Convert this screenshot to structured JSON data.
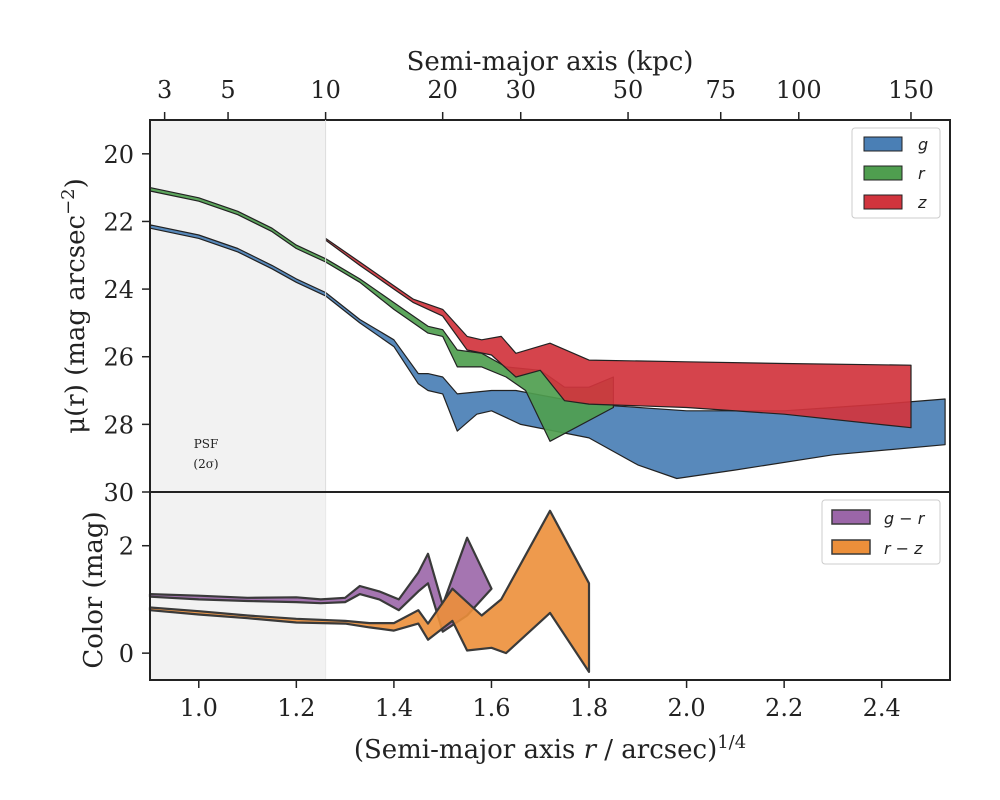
{
  "colors": {
    "g": "#4a7fb5",
    "r": "#4f9e4f",
    "z": "#d1343d",
    "gr": "#9b66a8",
    "rz": "#ec8f3a",
    "psf_shade": "#f2f2f2"
  },
  "chart_data": [
    {
      "type": "area",
      "panel": "surface-brightness",
      "xlabel_top": "Semi-major axis (kpc)",
      "ylabel": "μ(r) (mag arcsec⁻²)",
      "ylabel_parts": {
        "main": "μ(r) (mag arcsec",
        "sup": "−2",
        "close": ")"
      },
      "xlim": [
        0.9,
        2.54
      ],
      "ylim": [
        30,
        19
      ],
      "y_ticks": [
        20,
        22,
        24,
        26,
        28,
        30
      ],
      "top_axis": {
        "tick_labels": [
          "3",
          "5",
          "10",
          "20",
          "30",
          "50",
          "75",
          "100",
          "150"
        ],
        "tick_positions": [
          0.93,
          1.06,
          1.26,
          1.5,
          1.66,
          1.88,
          2.07,
          2.23,
          2.46
        ]
      },
      "psf_region": {
        "x_max": 1.26,
        "label_line1": "PSF",
        "label_line2": "(2σ)"
      },
      "legend": {
        "position": "top-right",
        "entries": [
          "g",
          "r",
          "z"
        ]
      },
      "series": [
        {
          "name": "g",
          "color_key": "g",
          "upper": [
            [
              0.9,
              22.1
            ],
            [
              1.0,
              22.4
            ],
            [
              1.08,
              22.8
            ],
            [
              1.15,
              23.3
            ],
            [
              1.2,
              23.7
            ],
            [
              1.26,
              24.1
            ],
            [
              1.33,
              24.9
            ],
            [
              1.4,
              25.5
            ],
            [
              1.45,
              26.5
            ],
            [
              1.47,
              26.5
            ],
            [
              1.5,
              26.6
            ],
            [
              1.53,
              27.1
            ],
            [
              1.6,
              27.0
            ],
            [
              1.65,
              27.0
            ],
            [
              1.8,
              27.4
            ],
            [
              2.0,
              27.6
            ],
            [
              2.2,
              27.6
            ],
            [
              2.3,
              27.5
            ],
            [
              2.4,
              27.4
            ],
            [
              2.53,
              27.25
            ]
          ],
          "lower": [
            [
              0.9,
              22.2
            ],
            [
              1.0,
              22.5
            ],
            [
              1.08,
              22.9
            ],
            [
              1.15,
              23.4
            ],
            [
              1.2,
              23.8
            ],
            [
              1.26,
              24.2
            ],
            [
              1.33,
              25.0
            ],
            [
              1.4,
              25.7
            ],
            [
              1.45,
              26.8
            ],
            [
              1.47,
              27.0
            ],
            [
              1.5,
              27.1
            ],
            [
              1.53,
              28.2
            ],
            [
              1.57,
              27.7
            ],
            [
              1.6,
              27.6
            ],
            [
              1.66,
              28.0
            ],
            [
              1.8,
              28.4
            ],
            [
              1.9,
              29.2
            ],
            [
              1.98,
              29.6
            ],
            [
              2.1,
              29.35
            ],
            [
              2.3,
              28.9
            ],
            [
              2.53,
              28.6
            ]
          ]
        },
        {
          "name": "r",
          "color_key": "r",
          "upper": [
            [
              0.9,
              21.0
            ],
            [
              1.0,
              21.3
            ],
            [
              1.08,
              21.7
            ],
            [
              1.15,
              22.2
            ],
            [
              1.2,
              22.7
            ],
            [
              1.26,
              23.1
            ],
            [
              1.33,
              23.7
            ],
            [
              1.4,
              24.4
            ],
            [
              1.43,
              24.7
            ],
            [
              1.47,
              25.1
            ],
            [
              1.5,
              25.2
            ],
            [
              1.53,
              25.8
            ],
            [
              1.58,
              25.9
            ],
            [
              1.63,
              26.3
            ],
            [
              1.7,
              26.4
            ],
            [
              1.75,
              26.9
            ],
            [
              1.8,
              26.9
            ],
            [
              1.85,
              26.6
            ]
          ],
          "lower": [
            [
              0.9,
              21.1
            ],
            [
              1.0,
              21.4
            ],
            [
              1.08,
              21.8
            ],
            [
              1.15,
              22.3
            ],
            [
              1.2,
              22.8
            ],
            [
              1.26,
              23.2
            ],
            [
              1.33,
              23.8
            ],
            [
              1.4,
              24.6
            ],
            [
              1.43,
              24.9
            ],
            [
              1.47,
              25.3
            ],
            [
              1.5,
              25.4
            ],
            [
              1.53,
              26.3
            ],
            [
              1.58,
              26.3
            ],
            [
              1.63,
              26.6
            ],
            [
              1.67,
              27.0
            ],
            [
              1.72,
              28.5
            ],
            [
              1.85,
              27.5
            ]
          ]
        },
        {
          "name": "z",
          "color_key": "z",
          "upper": [
            [
              1.26,
              22.5
            ],
            [
              1.33,
              23.2
            ],
            [
              1.4,
              23.9
            ],
            [
              1.44,
              24.3
            ],
            [
              1.5,
              24.6
            ],
            [
              1.55,
              25.4
            ],
            [
              1.58,
              25.5
            ],
            [
              1.62,
              25.4
            ],
            [
              1.65,
              25.9
            ],
            [
              1.72,
              25.6
            ],
            [
              1.8,
              26.1
            ],
            [
              2.0,
              26.15
            ],
            [
              2.2,
              26.2
            ],
            [
              2.46,
              26.25
            ]
          ],
          "lower": [
            [
              1.26,
              22.55
            ],
            [
              1.33,
              23.3
            ],
            [
              1.4,
              24.0
            ],
            [
              1.44,
              24.4
            ],
            [
              1.5,
              24.8
            ],
            [
              1.55,
              25.8
            ],
            [
              1.6,
              25.95
            ],
            [
              1.65,
              26.6
            ],
            [
              1.7,
              26.4
            ],
            [
              1.75,
              27.3
            ],
            [
              1.8,
              27.4
            ],
            [
              2.0,
              27.5
            ],
            [
              2.2,
              27.7
            ],
            [
              2.46,
              28.1
            ]
          ]
        }
      ]
    },
    {
      "type": "area",
      "panel": "color",
      "xlabel": "(Semi-major axis r / arcsec)^1/4",
      "xlabel_parts": {
        "main": "(Semi-major axis ",
        "italic": "r",
        "tail": " / arcsec)",
        "sup": "1/4"
      },
      "ylabel": "Color (mag)",
      "xlim": [
        0.9,
        2.54
      ],
      "ylim": [
        -0.5,
        3.0
      ],
      "y_ticks": [
        0,
        2
      ],
      "x_ticks": [
        1.0,
        1.2,
        1.4,
        1.6,
        1.8,
        2.0,
        2.2,
        2.4
      ],
      "x_tick_labels": [
        "1.0",
        "1.2",
        "1.4",
        "1.6",
        "1.8",
        "2.0",
        "2.2",
        "2.4"
      ],
      "legend": {
        "position": "top-right",
        "entries": [
          "g − r",
          "r − z"
        ]
      },
      "series": [
        {
          "name": "g − r",
          "color_key": "gr",
          "upper": [
            [
              0.9,
              1.1
            ],
            [
              1.0,
              1.07
            ],
            [
              1.1,
              1.03
            ],
            [
              1.2,
              1.04
            ],
            [
              1.25,
              1.0
            ],
            [
              1.3,
              1.03
            ],
            [
              1.33,
              1.25
            ],
            [
              1.37,
              1.15
            ],
            [
              1.41,
              1.0
            ],
            [
              1.45,
              1.5
            ],
            [
              1.47,
              1.85
            ],
            [
              1.5,
              0.9
            ],
            [
              1.55,
              2.15
            ],
            [
              1.6,
              1.2
            ]
          ],
          "lower": [
            [
              0.9,
              1.05
            ],
            [
              1.0,
              1.0
            ],
            [
              1.1,
              0.97
            ],
            [
              1.2,
              0.95
            ],
            [
              1.25,
              0.93
            ],
            [
              1.3,
              0.95
            ],
            [
              1.33,
              1.1
            ],
            [
              1.37,
              1.0
            ],
            [
              1.41,
              0.8
            ],
            [
              1.45,
              1.15
            ],
            [
              1.47,
              1.3
            ],
            [
              1.5,
              0.4
            ],
            [
              1.55,
              0.7
            ],
            [
              1.6,
              1.2
            ]
          ]
        },
        {
          "name": "r − z",
          "color_key": "rz",
          "upper": [
            [
              0.9,
              0.85
            ],
            [
              1.0,
              0.78
            ],
            [
              1.1,
              0.7
            ],
            [
              1.2,
              0.64
            ],
            [
              1.3,
              0.6
            ],
            [
              1.35,
              0.56
            ],
            [
              1.4,
              0.56
            ],
            [
              1.45,
              0.8
            ],
            [
              1.47,
              0.55
            ],
            [
              1.52,
              1.2
            ],
            [
              1.58,
              0.7
            ],
            [
              1.62,
              1.0
            ],
            [
              1.72,
              2.65
            ],
            [
              1.8,
              1.3
            ]
          ],
          "lower": [
            [
              0.9,
              0.8
            ],
            [
              1.0,
              0.72
            ],
            [
              1.1,
              0.65
            ],
            [
              1.2,
              0.57
            ],
            [
              1.3,
              0.55
            ],
            [
              1.35,
              0.48
            ],
            [
              1.4,
              0.42
            ],
            [
              1.45,
              0.55
            ],
            [
              1.47,
              0.25
            ],
            [
              1.52,
              0.6
            ],
            [
              1.55,
              0.05
            ],
            [
              1.6,
              0.1
            ],
            [
              1.63,
              0.0
            ],
            [
              1.72,
              0.75
            ],
            [
              1.8,
              -0.35
            ]
          ]
        }
      ]
    }
  ]
}
